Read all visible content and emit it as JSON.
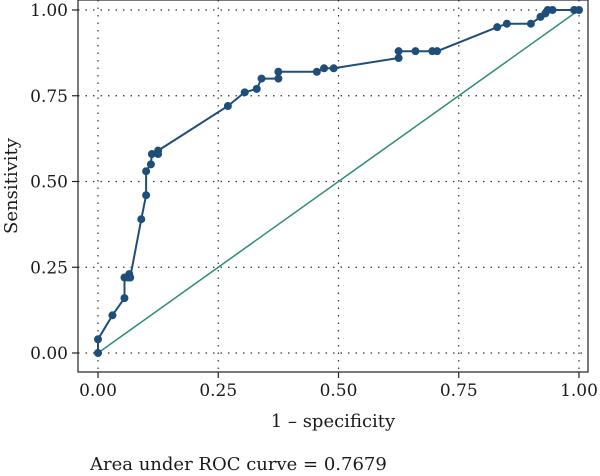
{
  "chart_data": {
    "type": "line",
    "xlabel": "1 – specificity",
    "ylabel": "Sensitivity",
    "caption": "Area under ROC curve = 0.7679",
    "xlim": [
      0,
      1
    ],
    "ylim": [
      0,
      1
    ],
    "x_ticks": [
      "0.00",
      "0.25",
      "0.50",
      "0.75",
      "1.00"
    ],
    "y_ticks": [
      "0.00",
      "0.25",
      "0.50",
      "0.75",
      "1.00"
    ],
    "grid": "dotted",
    "colors": {
      "roc": "#1f4e79",
      "reference": "#2e8b7a",
      "frame": "#222222",
      "grid": "#333333"
    },
    "series": [
      {
        "values": [
          [
            0.0,
            0.0
          ],
          [
            0.0,
            0.04
          ],
          [
            0.03,
            0.11
          ],
          [
            0.055,
            0.16
          ],
          [
            0.055,
            0.22
          ],
          [
            0.062,
            0.22
          ],
          [
            0.065,
            0.23
          ],
          [
            0.067,
            0.22
          ],
          [
            0.09,
            0.39
          ],
          [
            0.1,
            0.46
          ],
          [
            0.1,
            0.53
          ],
          [
            0.11,
            0.55
          ],
          [
            0.112,
            0.58
          ],
          [
            0.125,
            0.58
          ],
          [
            0.125,
            0.59
          ],
          [
            0.27,
            0.72
          ],
          [
            0.305,
            0.76
          ],
          [
            0.33,
            0.77
          ],
          [
            0.34,
            0.8
          ],
          [
            0.375,
            0.8
          ],
          [
            0.375,
            0.82
          ],
          [
            0.455,
            0.82
          ],
          [
            0.47,
            0.83
          ],
          [
            0.49,
            0.83
          ],
          [
            0.625,
            0.86
          ],
          [
            0.625,
            0.88
          ],
          [
            0.66,
            0.88
          ],
          [
            0.695,
            0.88
          ],
          [
            0.705,
            0.88
          ],
          [
            0.83,
            0.95
          ],
          [
            0.85,
            0.96
          ],
          [
            0.9,
            0.96
          ],
          [
            0.92,
            0.98
          ],
          [
            0.93,
            0.99
          ],
          [
            0.935,
            1.0
          ],
          [
            0.945,
            1.0
          ],
          [
            0.99,
            1.0
          ],
          [
            1.0,
            1.0
          ]
        ]
      },
      {
        "values": [
          [
            0,
            0
          ],
          [
            1,
            1
          ]
        ]
      }
    ]
  }
}
